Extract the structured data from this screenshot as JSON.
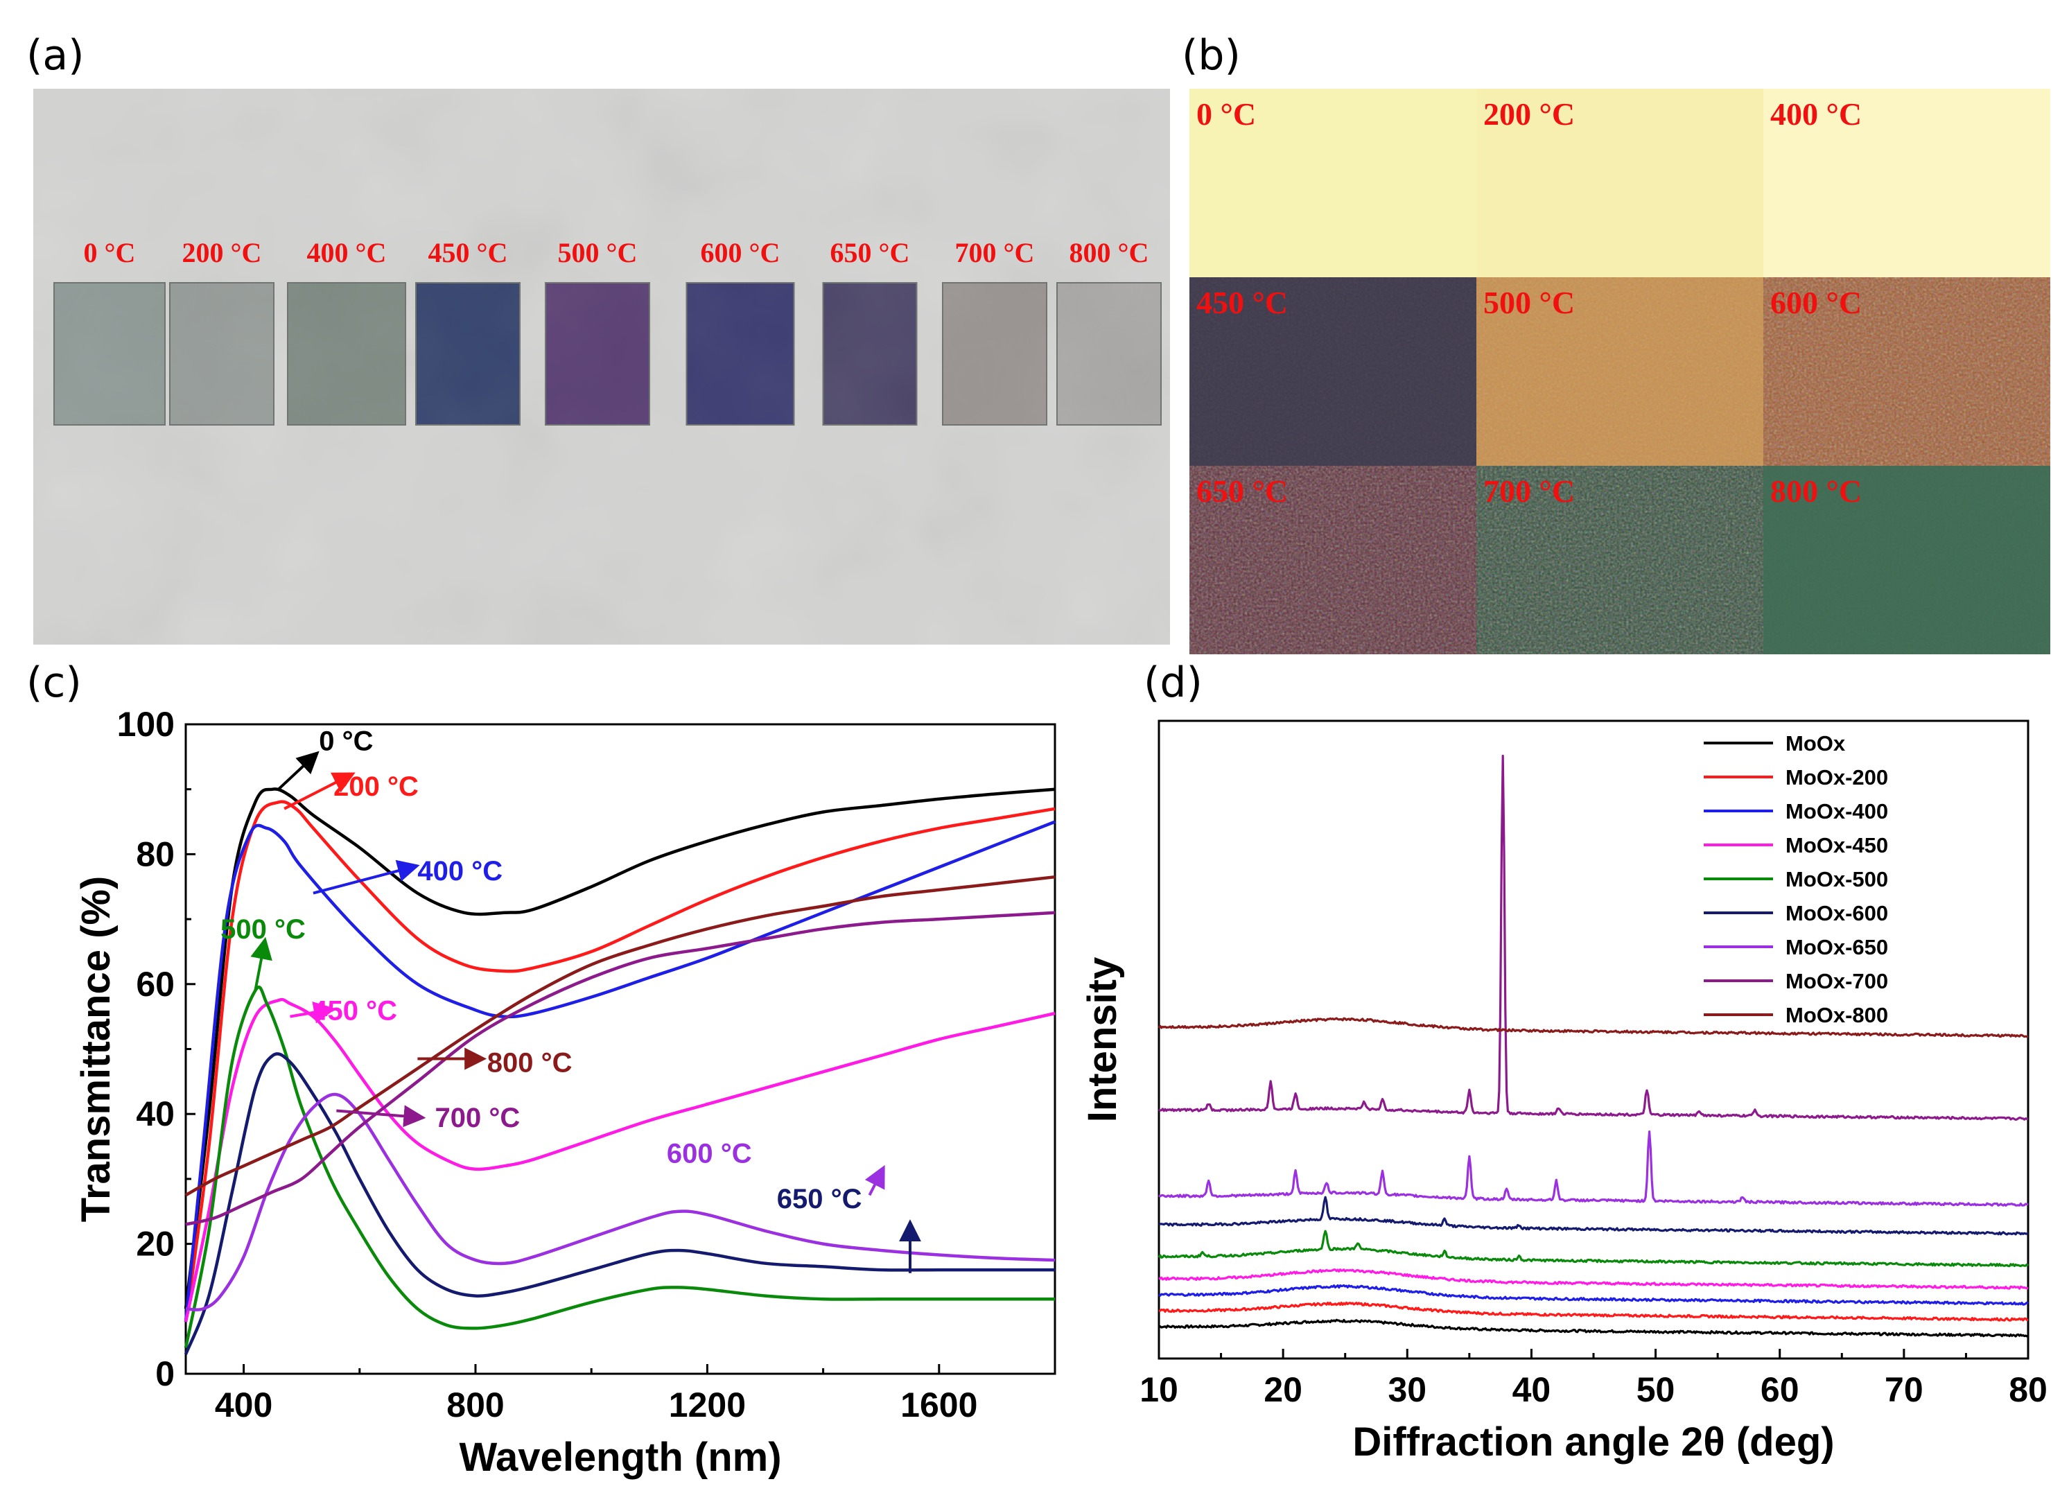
{
  "panels": {
    "a": {
      "label": "(a)",
      "samples": [
        "0 °C",
        "200 °C",
        "400 °C",
        "450 °C",
        "500 °C",
        "600 °C",
        "650 °C",
        "700 °C",
        "800 °C"
      ]
    },
    "b": {
      "label": "(b)",
      "tiles": [
        "0 °C",
        "200 °C",
        "400 °C",
        "450 °C",
        "500 °C",
        "600 °C",
        "650 °C",
        "700 °C",
        "800 °C"
      ]
    },
    "c": {
      "label": "(c)"
    },
    "d": {
      "label": "(d)"
    }
  },
  "colors": {
    "s0": "#000000",
    "s200": "#ff1a1a",
    "s400": "#1e1ee6",
    "s450": "#ff1ae6",
    "s500": "#0a8a0a",
    "s600": "#141a6e",
    "s650": "#9b30e0",
    "s700": "#8c1a8c",
    "s800": "#8b1a1a"
  },
  "chart_data": [
    {
      "type": "line",
      "title": "",
      "xlabel": "Wavelength (nm)",
      "ylabel": "Transmittance (%)",
      "xlim": [
        300,
        1800
      ],
      "ylim": [
        0,
        100
      ],
      "xticks": [
        400,
        800,
        1200,
        1600
      ],
      "yticks": [
        0,
        20,
        40,
        60,
        80,
        100
      ],
      "series": [
        {
          "name": "0 °C",
          "label": "0 °C",
          "color": "#000000",
          "x": [
            300,
            340,
            380,
            420,
            450,
            480,
            520,
            600,
            700,
            780,
            850,
            900,
            1000,
            1100,
            1200,
            1300,
            1400,
            1500,
            1600,
            1700,
            1800
          ],
          "y": [
            10,
            40,
            75,
            88,
            90,
            89,
            86,
            81,
            74,
            71,
            71,
            71.5,
            75,
            79,
            82,
            84.5,
            86.5,
            87.5,
            88.5,
            89.3,
            90
          ]
        },
        {
          "name": "200 °C",
          "label": "200 °C",
          "color": "#ff1a1a",
          "x": [
            300,
            340,
            380,
            420,
            460,
            490,
            520,
            600,
            700,
            780,
            850,
            900,
            1000,
            1100,
            1200,
            1300,
            1400,
            1500,
            1600,
            1700,
            1800
          ],
          "y": [
            8,
            35,
            70,
            85,
            88,
            87,
            84,
            76,
            67,
            63,
            62,
            62.5,
            65,
            69,
            73,
            76.5,
            79.5,
            82,
            84,
            85.5,
            87
          ]
        },
        {
          "name": "400 °C",
          "label": "400 °C",
          "color": "#1e1ee6",
          "x": [
            300,
            330,
            370,
            410,
            440,
            470,
            500,
            600,
            700,
            800,
            850,
            900,
            1000,
            1100,
            1200,
            1300,
            1400,
            1500,
            1600,
            1700,
            1800
          ],
          "y": [
            8,
            35,
            70,
            83,
            84,
            82,
            78,
            68,
            60,
            56,
            55,
            55.5,
            58,
            61,
            64,
            67.5,
            71,
            74.5,
            78,
            81.5,
            85
          ]
        },
        {
          "name": "450 °C",
          "label": "450 °C",
          "color": "#ff1ae6",
          "x": [
            300,
            340,
            380,
            420,
            460,
            480,
            520,
            560,
            600,
            650,
            700,
            760,
            800,
            850,
            900,
            1000,
            1100,
            1200,
            1300,
            1400,
            1500,
            1600,
            1700,
            1800
          ],
          "y": [
            8,
            25,
            44,
            55,
            57.5,
            57,
            55,
            51,
            46,
            40,
            35.5,
            32.5,
            31.5,
            32,
            33,
            36,
            39,
            41.5,
            44,
            46.5,
            49,
            51.5,
            53.5,
            55.5
          ]
        },
        {
          "name": "500 °C",
          "label": "500 °C",
          "color": "#0a8a0a",
          "x": [
            300,
            340,
            380,
            420,
            440,
            470,
            500,
            550,
            600,
            650,
            700,
            750,
            800,
            850,
            900,
            1000,
            1100,
            1150,
            1200,
            1300,
            1400,
            1500,
            1600,
            1700,
            1800
          ],
          "y": [
            4,
            22,
            48,
            59,
            57,
            50,
            41,
            30,
            22,
            15,
            10,
            7.5,
            7,
            7.5,
            8.5,
            11,
            13,
            13.3,
            13,
            12,
            11.5,
            11.5,
            11.5,
            11.5,
            11.5
          ]
        },
        {
          "name": "600 °C",
          "label": "600 °C",
          "color": "#141a6e",
          "x": [
            300,
            340,
            380,
            420,
            450,
            480,
            520,
            560,
            600,
            650,
            700,
            750,
            800,
            850,
            900,
            1000,
            1100,
            1150,
            1200,
            1300,
            1400,
            1500,
            1600,
            1700,
            1800
          ],
          "y": [
            3,
            12,
            28,
            44,
            49,
            48,
            43,
            37,
            30,
            22,
            16,
            13,
            12,
            12.5,
            13.5,
            16,
            18.5,
            19,
            18.5,
            17,
            16.5,
            16,
            16,
            16,
            16
          ]
        },
        {
          "name": "650 °C",
          "label": "650 °C",
          "color": "#9b30e0",
          "x": [
            300,
            330,
            360,
            400,
            440,
            480,
            520,
            560,
            600,
            650,
            700,
            750,
            800,
            850,
            900,
            1000,
            1100,
            1150,
            1200,
            1300,
            1400,
            1500,
            1600,
            1700,
            1800
          ],
          "y": [
            10,
            10,
            12,
            18,
            28,
            36,
            41,
            43,
            40,
            33,
            26,
            20,
            17.5,
            17,
            18,
            21,
            24,
            25,
            24.5,
            22,
            20,
            19,
            18.3,
            17.8,
            17.5
          ]
        },
        {
          "name": "700 °C",
          "label": "700 °C",
          "color": "#8c1a8c",
          "x": [
            300,
            350,
            400,
            450,
            500,
            550,
            600,
            700,
            800,
            900,
            1000,
            1100,
            1200,
            1300,
            1400,
            1500,
            1600,
            1700,
            1800
          ],
          "y": [
            23,
            24,
            26,
            28,
            30,
            34,
            38,
            45,
            52,
            57,
            61,
            64,
            65.5,
            67,
            68.5,
            69.5,
            70,
            70.5,
            71
          ]
        },
        {
          "name": "800 °C",
          "label": "800 °C",
          "color": "#8b1a1a",
          "x": [
            300,
            350,
            400,
            450,
            500,
            550,
            600,
            700,
            800,
            900,
            1000,
            1100,
            1200,
            1300,
            1400,
            1500,
            1600,
            1700,
            1800
          ],
          "y": [
            27.5,
            30,
            32,
            34,
            36,
            38,
            41,
            47,
            53,
            58.5,
            63,
            66,
            68.5,
            70.5,
            72,
            73.5,
            74.5,
            75.5,
            76.5
          ]
        }
      ],
      "annotations": [
        "0 °C",
        "200 °C",
        "400 °C",
        "500 °C",
        "450 °C",
        "800 °C",
        "700 °C",
        "650 °C",
        "600 °C"
      ]
    },
    {
      "type": "line",
      "title": "",
      "xlabel": "Diffraction angle 2θ (deg)",
      "ylabel": "Intensity",
      "xlim": [
        10,
        80
      ],
      "xticks": [
        10,
        20,
        30,
        40,
        50,
        60,
        70,
        80
      ],
      "y_scale": "arbitrary (stacked, offset curves)",
      "legend": [
        "MoOx",
        "MoOx-200",
        "MoOx-400",
        "MoOx-450",
        "MoOx-500",
        "MoOx-600",
        "MoOx-650",
        "MoOx-700",
        "MoOx-800"
      ],
      "legend_position": "top-right",
      "series": [
        {
          "name": "MoOx",
          "color": "#000000",
          "baseline": 5,
          "hump": 1.2,
          "peaks": []
        },
        {
          "name": "MoOx-200",
          "color": "#ff1a1a",
          "baseline": 7.5,
          "hump": 1.4,
          "peaks": []
        },
        {
          "name": "MoOx-400",
          "color": "#1e1ee6",
          "baseline": 10,
          "hump": 1.6,
          "peaks": []
        },
        {
          "name": "MoOx-450",
          "color": "#ff1ae6",
          "baseline": 12.5,
          "hump": 1.6,
          "peaks": []
        },
        {
          "name": "MoOx-500",
          "color": "#0a8a0a",
          "baseline": 16,
          "hump": 1.5,
          "peaks": [
            [
              13.5,
              0.6
            ],
            [
              23.4,
              3.0
            ],
            [
              26,
              1.0
            ],
            [
              33,
              0.8
            ],
            [
              39,
              0.6
            ]
          ]
        },
        {
          "name": "MoOx-600",
          "color": "#141a6e",
          "baseline": 21,
          "hump": 1.2,
          "peaks": [
            [
              23.4,
              3.5
            ],
            [
              33,
              1.0
            ],
            [
              39,
              0.5
            ]
          ]
        },
        {
          "name": "MoOx-650",
          "color": "#9b30e0",
          "baseline": 25.5,
          "hump": 0.8,
          "peaks": [
            [
              14,
              2.5
            ],
            [
              21,
              3.5
            ],
            [
              23.5,
              1.5
            ],
            [
              28,
              3.5
            ],
            [
              35,
              6.5
            ],
            [
              38,
              1.5
            ],
            [
              42,
              3.0
            ],
            [
              49.5,
              11
            ],
            [
              57,
              0.8
            ]
          ]
        },
        {
          "name": "MoOx-700",
          "color": "#8c1a8c",
          "baseline": 39,
          "hump": 0.5,
          "peaks": [
            [
              14,
              1.0
            ],
            [
              19,
              4.5
            ],
            [
              21,
              2.5
            ],
            [
              26.5,
              1.0
            ],
            [
              28,
              1.5
            ],
            [
              35,
              3.5
            ],
            [
              37.7,
              56
            ],
            [
              42.2,
              1.0
            ],
            [
              49.3,
              4.0
            ],
            [
              53.5,
              0.8
            ],
            [
              58,
              1.0
            ]
          ]
        },
        {
          "name": "MoOx-800",
          "color": "#8b1a1a",
          "baseline": 52,
          "hump": 1.5,
          "peaks": []
        }
      ]
    }
  ]
}
